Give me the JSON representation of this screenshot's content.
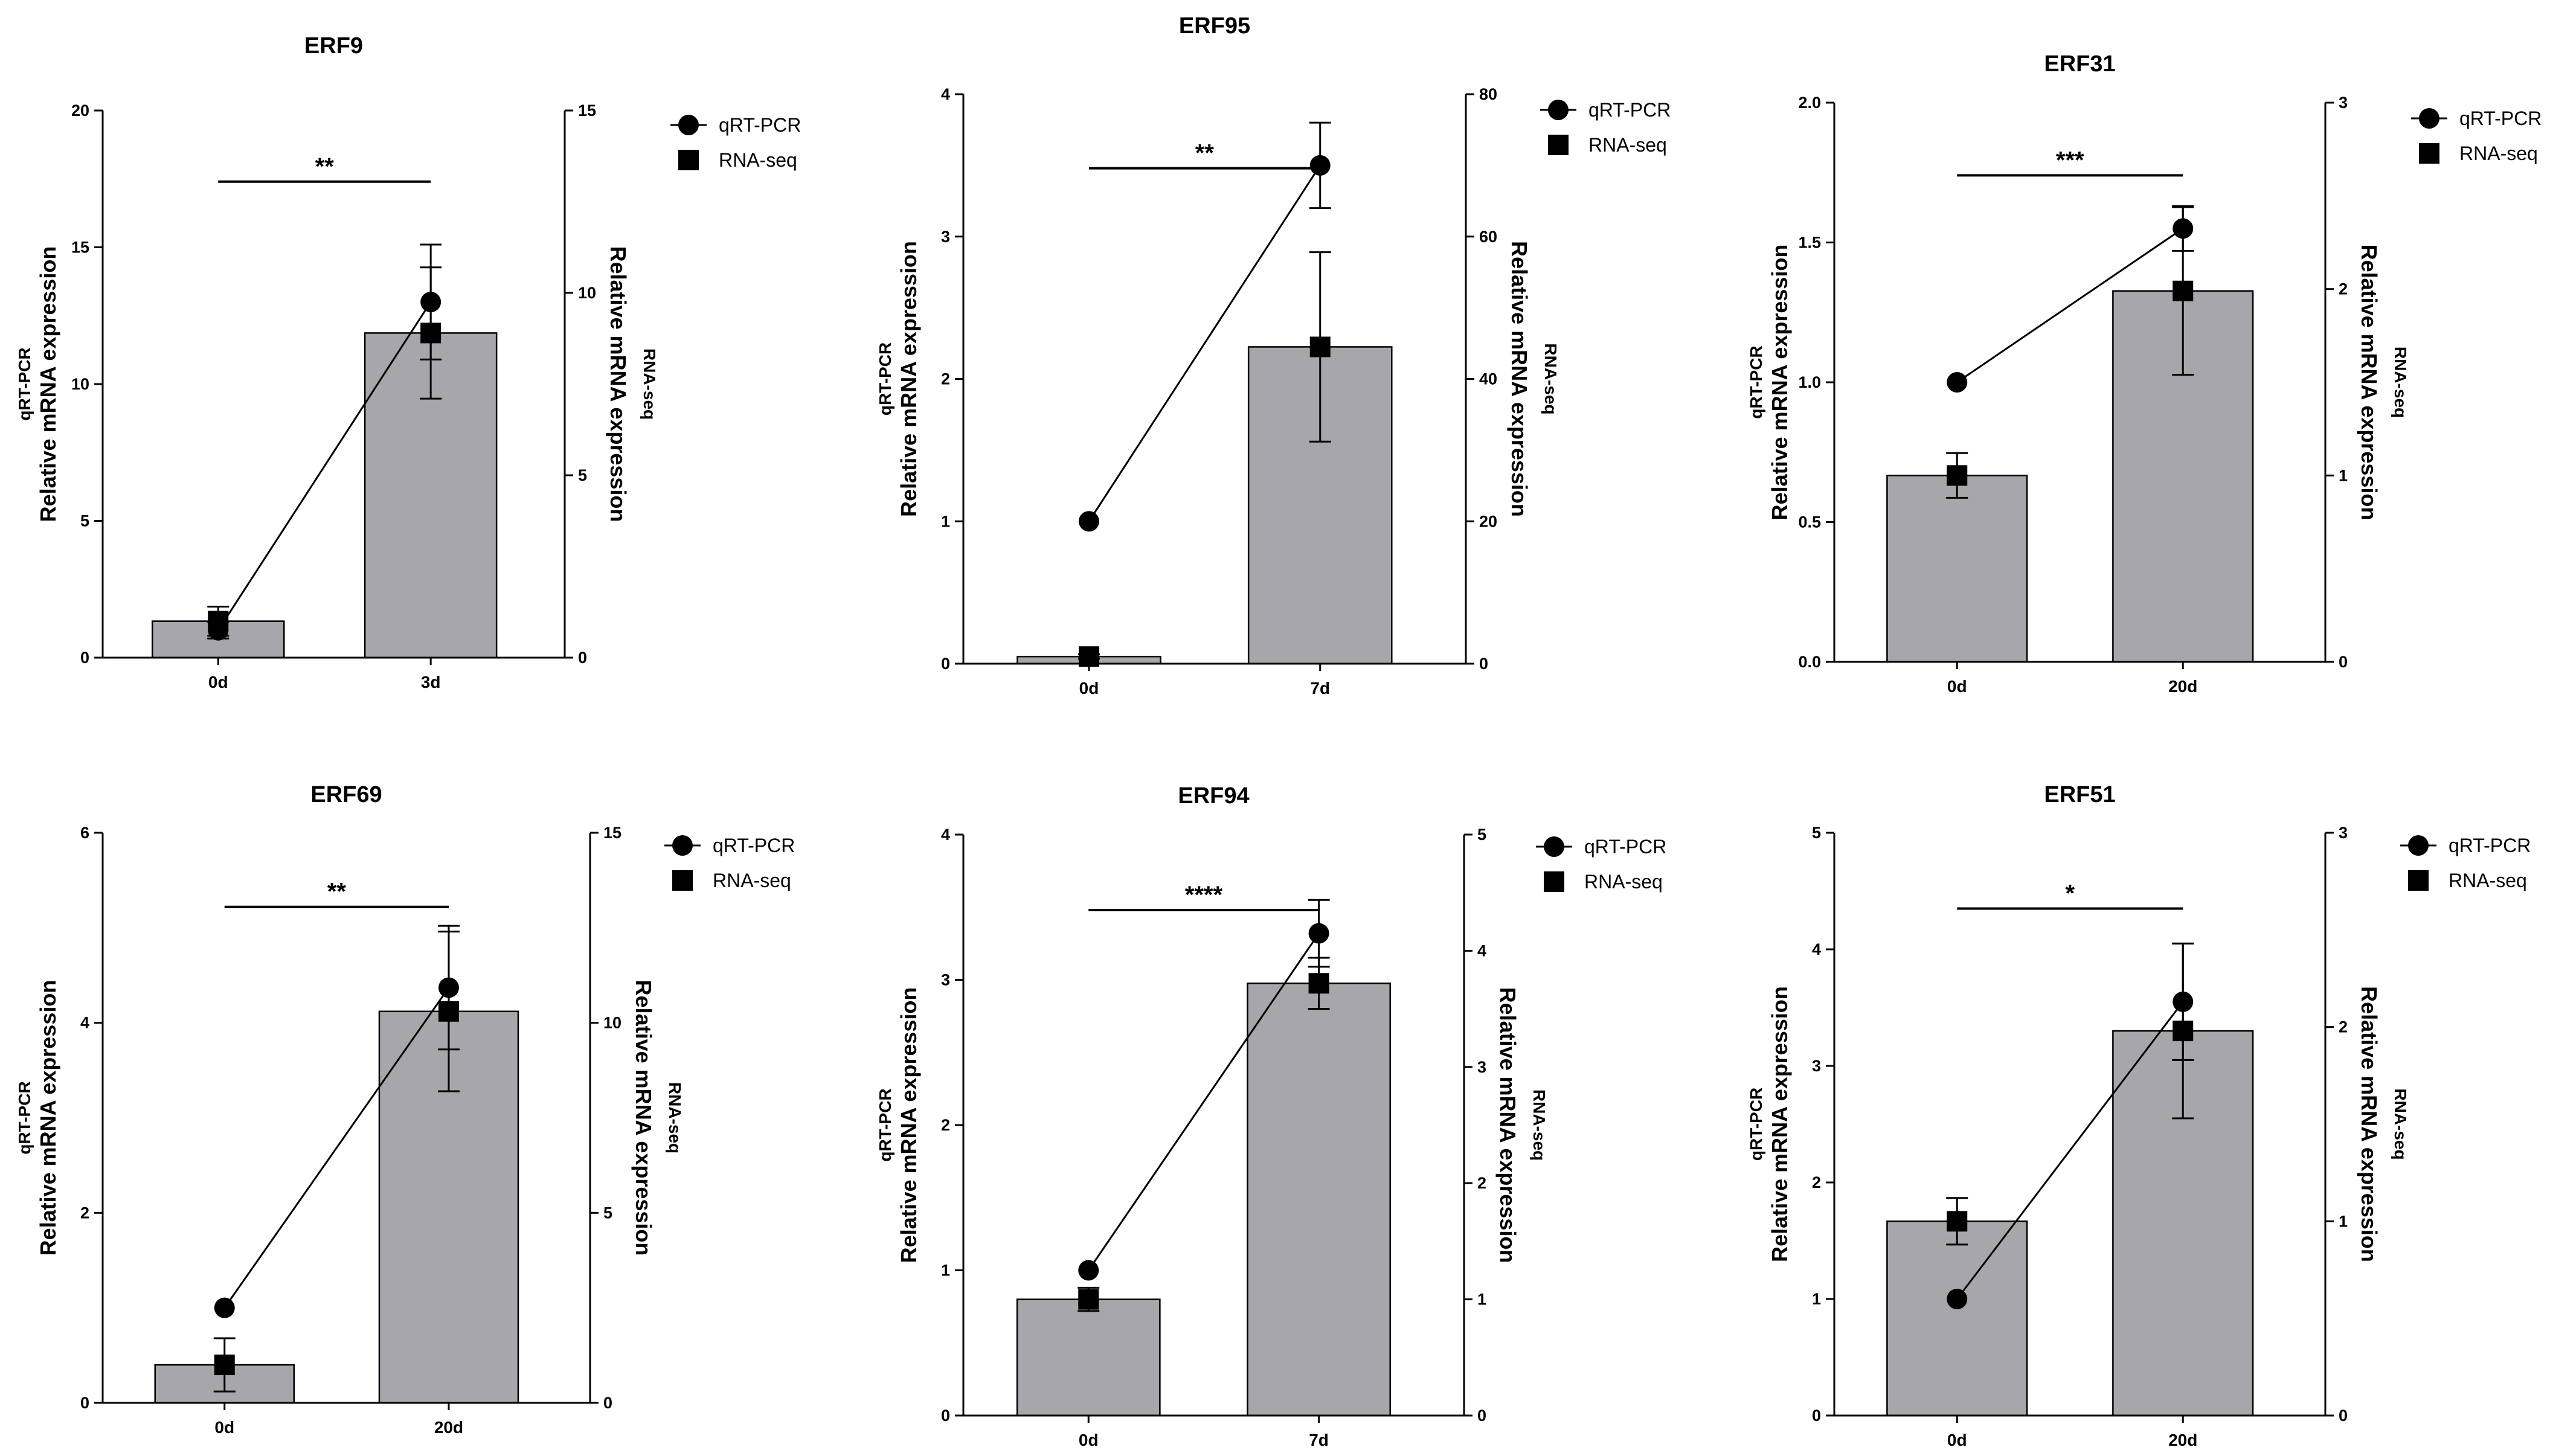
{
  "chart_data": [
    {
      "type": "bar",
      "title": "ERF9",
      "categories": [
        "0d",
        "3d"
      ],
      "series": [
        {
          "name": "RNA-seq",
          "axis": "right",
          "kind": "bar+marker",
          "values": [
            1.0,
            8.9
          ],
          "err": [
            0.4,
            1.8
          ]
        },
        {
          "name": "qRT-PCR",
          "axis": "left",
          "kind": "line+marker",
          "values": [
            1.0,
            13.0
          ],
          "err": [
            0.3,
            2.1
          ]
        }
      ],
      "ylabel_left": [
        "qRT-PCR",
        "Relative mRNA expression"
      ],
      "ylabel_right": [
        "RNA-seq",
        "Relative mRNA expression"
      ],
      "ylim_left": [
        0,
        20
      ],
      "yticks_left": [
        "0",
        "5",
        "10",
        "15",
        "20"
      ],
      "ylim_right": [
        0,
        15
      ],
      "yticks_right": [
        "0",
        "5",
        "10",
        "15"
      ],
      "significance": "**",
      "legend": [
        "qRT-PCR",
        "RNA-seq"
      ]
    },
    {
      "type": "bar",
      "title": "ERF95",
      "categories": [
        "0d",
        "7d"
      ],
      "series": [
        {
          "name": "RNA-seq",
          "axis": "right",
          "kind": "bar+marker",
          "values": [
            1.0,
            44.5
          ],
          "err": [
            0.3,
            13.3
          ]
        },
        {
          "name": "qRT-PCR",
          "axis": "left",
          "kind": "line+marker",
          "values": [
            1.0,
            3.5
          ],
          "err": [
            0.0,
            0.3
          ]
        }
      ],
      "ylabel_left": [
        "qRT-PCR",
        "Relative mRNA expression"
      ],
      "ylabel_right": [
        "RNA-seq",
        "Relative mRNA expression"
      ],
      "ylim_left": [
        0,
        4
      ],
      "yticks_left": [
        "0",
        "1",
        "2",
        "3",
        "4"
      ],
      "ylim_right": [
        0,
        80
      ],
      "yticks_right": [
        "0",
        "20",
        "40",
        "60",
        "80"
      ],
      "significance": "**",
      "legend": [
        "qRT-PCR",
        "RNA-seq"
      ]
    },
    {
      "type": "bar",
      "title": "ERF31",
      "categories": [
        "0d",
        "20d"
      ],
      "series": [
        {
          "name": "RNA-seq",
          "axis": "right",
          "kind": "bar+marker",
          "values": [
            1.0,
            1.99
          ],
          "err": [
            0.12,
            0.45
          ]
        },
        {
          "name": "qRT-PCR",
          "axis": "left",
          "kind": "line+marker",
          "values": [
            1.0,
            1.55
          ],
          "err": [
            0.0,
            0.08
          ]
        }
      ],
      "ylabel_left": [
        "qRT-PCR",
        "Relative mRNA expression"
      ],
      "ylabel_right": [
        "RNA-seq",
        "Relative mRNA expression"
      ],
      "ylim_left": [
        0,
        2.0
      ],
      "yticks_left": [
        "0.0",
        "0.5",
        "1.0",
        "1.5",
        "2.0"
      ],
      "ylim_right": [
        0,
        3
      ],
      "yticks_right": [
        "0",
        "1",
        "2",
        "3"
      ],
      "significance": "***",
      "legend": [
        "qRT-PCR",
        "RNA-seq"
      ]
    },
    {
      "type": "bar",
      "title": "ERF69",
      "categories": [
        "0d",
        "20d"
      ],
      "series": [
        {
          "name": "RNA-seq",
          "axis": "right",
          "kind": "bar+marker",
          "values": [
            1.0,
            10.3
          ],
          "err": [
            0.7,
            2.1
          ]
        },
        {
          "name": "qRT-PCR",
          "axis": "left",
          "kind": "line+marker",
          "values": [
            1.0,
            4.37
          ],
          "err": [
            0.0,
            0.65
          ]
        }
      ],
      "ylabel_left": [
        "qRT-PCR",
        "Relative mRNA expression"
      ],
      "ylabel_right": [
        "RNA-seq",
        "Relative mRNA expression"
      ],
      "ylim_left": [
        0,
        6
      ],
      "yticks_left": [
        "0",
        "2",
        "4",
        "6"
      ],
      "ylim_right": [
        0,
        15
      ],
      "yticks_right": [
        "0",
        "5",
        "10",
        "15"
      ],
      "significance": "**",
      "legend": [
        "qRT-PCR",
        "RNA-seq"
      ]
    },
    {
      "type": "bar",
      "title": "ERF94",
      "categories": [
        "0d",
        "7d"
      ],
      "series": [
        {
          "name": "RNA-seq",
          "axis": "right",
          "kind": "bar+marker",
          "values": [
            1.0,
            3.72
          ],
          "err": [
            0.1,
            0.22
          ]
        },
        {
          "name": "qRT-PCR",
          "axis": "left",
          "kind": "line+marker",
          "values": [
            1.0,
            3.32
          ],
          "err": [
            0.0,
            0.23
          ]
        }
      ],
      "ylabel_left": [
        "qRT-PCR",
        "Relative mRNA expression"
      ],
      "ylabel_right": [
        "RNA-seq",
        "Relative mRNA expression"
      ],
      "ylim_left": [
        0,
        4
      ],
      "yticks_left": [
        "0",
        "1",
        "2",
        "3",
        "4"
      ],
      "ylim_right": [
        0,
        5
      ],
      "yticks_right": [
        "0",
        "1",
        "2",
        "3",
        "4",
        "5"
      ],
      "significance": "****",
      "legend": [
        "qRT-PCR",
        "RNA-seq"
      ]
    },
    {
      "type": "bar",
      "title": "ERF51",
      "categories": [
        "0d",
        "20d"
      ],
      "series": [
        {
          "name": "RNA-seq",
          "axis": "right",
          "kind": "bar+marker",
          "values": [
            1.0,
            1.98
          ],
          "err": [
            0.12,
            0.45
          ]
        },
        {
          "name": "qRT-PCR",
          "axis": "left",
          "kind": "line+marker",
          "values": [
            1.0,
            3.55
          ],
          "err": [
            0.0,
            0.5
          ]
        }
      ],
      "ylabel_left": [
        "qRT-PCR",
        "Relative mRNA expression"
      ],
      "ylabel_right": [
        "RNA-seq",
        "Relative mRNA expression"
      ],
      "ylim_left": [
        0,
        5
      ],
      "yticks_left": [
        "0",
        "1",
        "2",
        "3",
        "4",
        "5"
      ],
      "ylim_right": [
        0,
        3
      ],
      "yticks_right": [
        "0",
        "1",
        "2",
        "3"
      ],
      "significance": "*",
      "legend": [
        "qRT-PCR",
        "RNA-seq"
      ]
    }
  ],
  "colors": {
    "bar_fill": "#a6a6ab",
    "line": "#000000"
  }
}
